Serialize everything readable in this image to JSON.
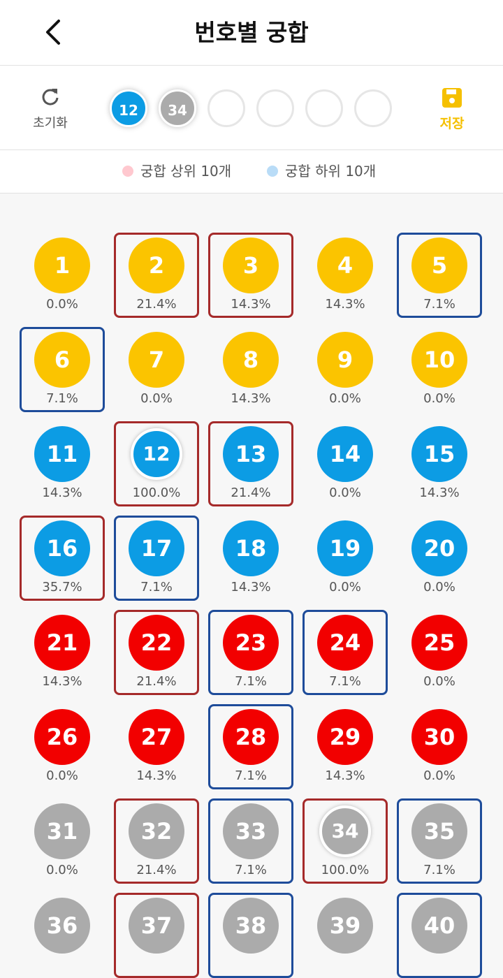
{
  "header": {
    "title": "번호별 궁합"
  },
  "toolbar": {
    "reset": "초기화",
    "selected": [
      "12",
      "34"
    ],
    "empty_slots": 4,
    "save": "저장"
  },
  "legend": {
    "top": "궁합 상위 10개",
    "bottom": "궁합 하위 10개"
  },
  "numbers": [
    {
      "label": "1",
      "percent": "0.0%"
    },
    {
      "label": "2",
      "percent": "21.4%",
      "mark": "top"
    },
    {
      "label": "3",
      "percent": "14.3%",
      "mark": "top"
    },
    {
      "label": "4",
      "percent": "14.3%"
    },
    {
      "label": "5",
      "percent": "7.1%",
      "mark": "bottom"
    },
    {
      "label": "6",
      "percent": "7.1%",
      "mark": "bottom"
    },
    {
      "label": "7",
      "percent": "0.0%"
    },
    {
      "label": "8",
      "percent": "14.3%"
    },
    {
      "label": "9",
      "percent": "0.0%"
    },
    {
      "label": "10",
      "percent": "0.0%"
    },
    {
      "label": "11",
      "percent": "14.3%"
    },
    {
      "label": "12",
      "percent": "100.0%",
      "mark": "top",
      "selected": true
    },
    {
      "label": "13",
      "percent": "21.4%",
      "mark": "top"
    },
    {
      "label": "14",
      "percent": "0.0%"
    },
    {
      "label": "15",
      "percent": "14.3%"
    },
    {
      "label": "16",
      "percent": "35.7%",
      "mark": "top"
    },
    {
      "label": "17",
      "percent": "7.1%",
      "mark": "bottom"
    },
    {
      "label": "18",
      "percent": "14.3%"
    },
    {
      "label": "19",
      "percent": "0.0%"
    },
    {
      "label": "20",
      "percent": "0.0%"
    },
    {
      "label": "21",
      "percent": "14.3%"
    },
    {
      "label": "22",
      "percent": "21.4%",
      "mark": "top"
    },
    {
      "label": "23",
      "percent": "7.1%",
      "mark": "bottom"
    },
    {
      "label": "24",
      "percent": "7.1%",
      "mark": "bottom"
    },
    {
      "label": "25",
      "percent": "0.0%"
    },
    {
      "label": "26",
      "percent": "0.0%"
    },
    {
      "label": "27",
      "percent": "14.3%"
    },
    {
      "label": "28",
      "percent": "7.1%",
      "mark": "bottom"
    },
    {
      "label": "29",
      "percent": "14.3%"
    },
    {
      "label": "30",
      "percent": "0.0%"
    },
    {
      "label": "31",
      "percent": "0.0%"
    },
    {
      "label": "32",
      "percent": "21.4%",
      "mark": "top"
    },
    {
      "label": "33",
      "percent": "7.1%",
      "mark": "bottom"
    },
    {
      "label": "34",
      "percent": "100.0%",
      "mark": "top",
      "selected": true
    },
    {
      "label": "35",
      "percent": "7.1%",
      "mark": "bottom"
    },
    {
      "label": "36"
    },
    {
      "label": "37",
      "mark": "top"
    },
    {
      "label": "38",
      "mark": "bottom"
    },
    {
      "label": "39"
    },
    {
      "label": "40",
      "mark": "bottom"
    }
  ]
}
